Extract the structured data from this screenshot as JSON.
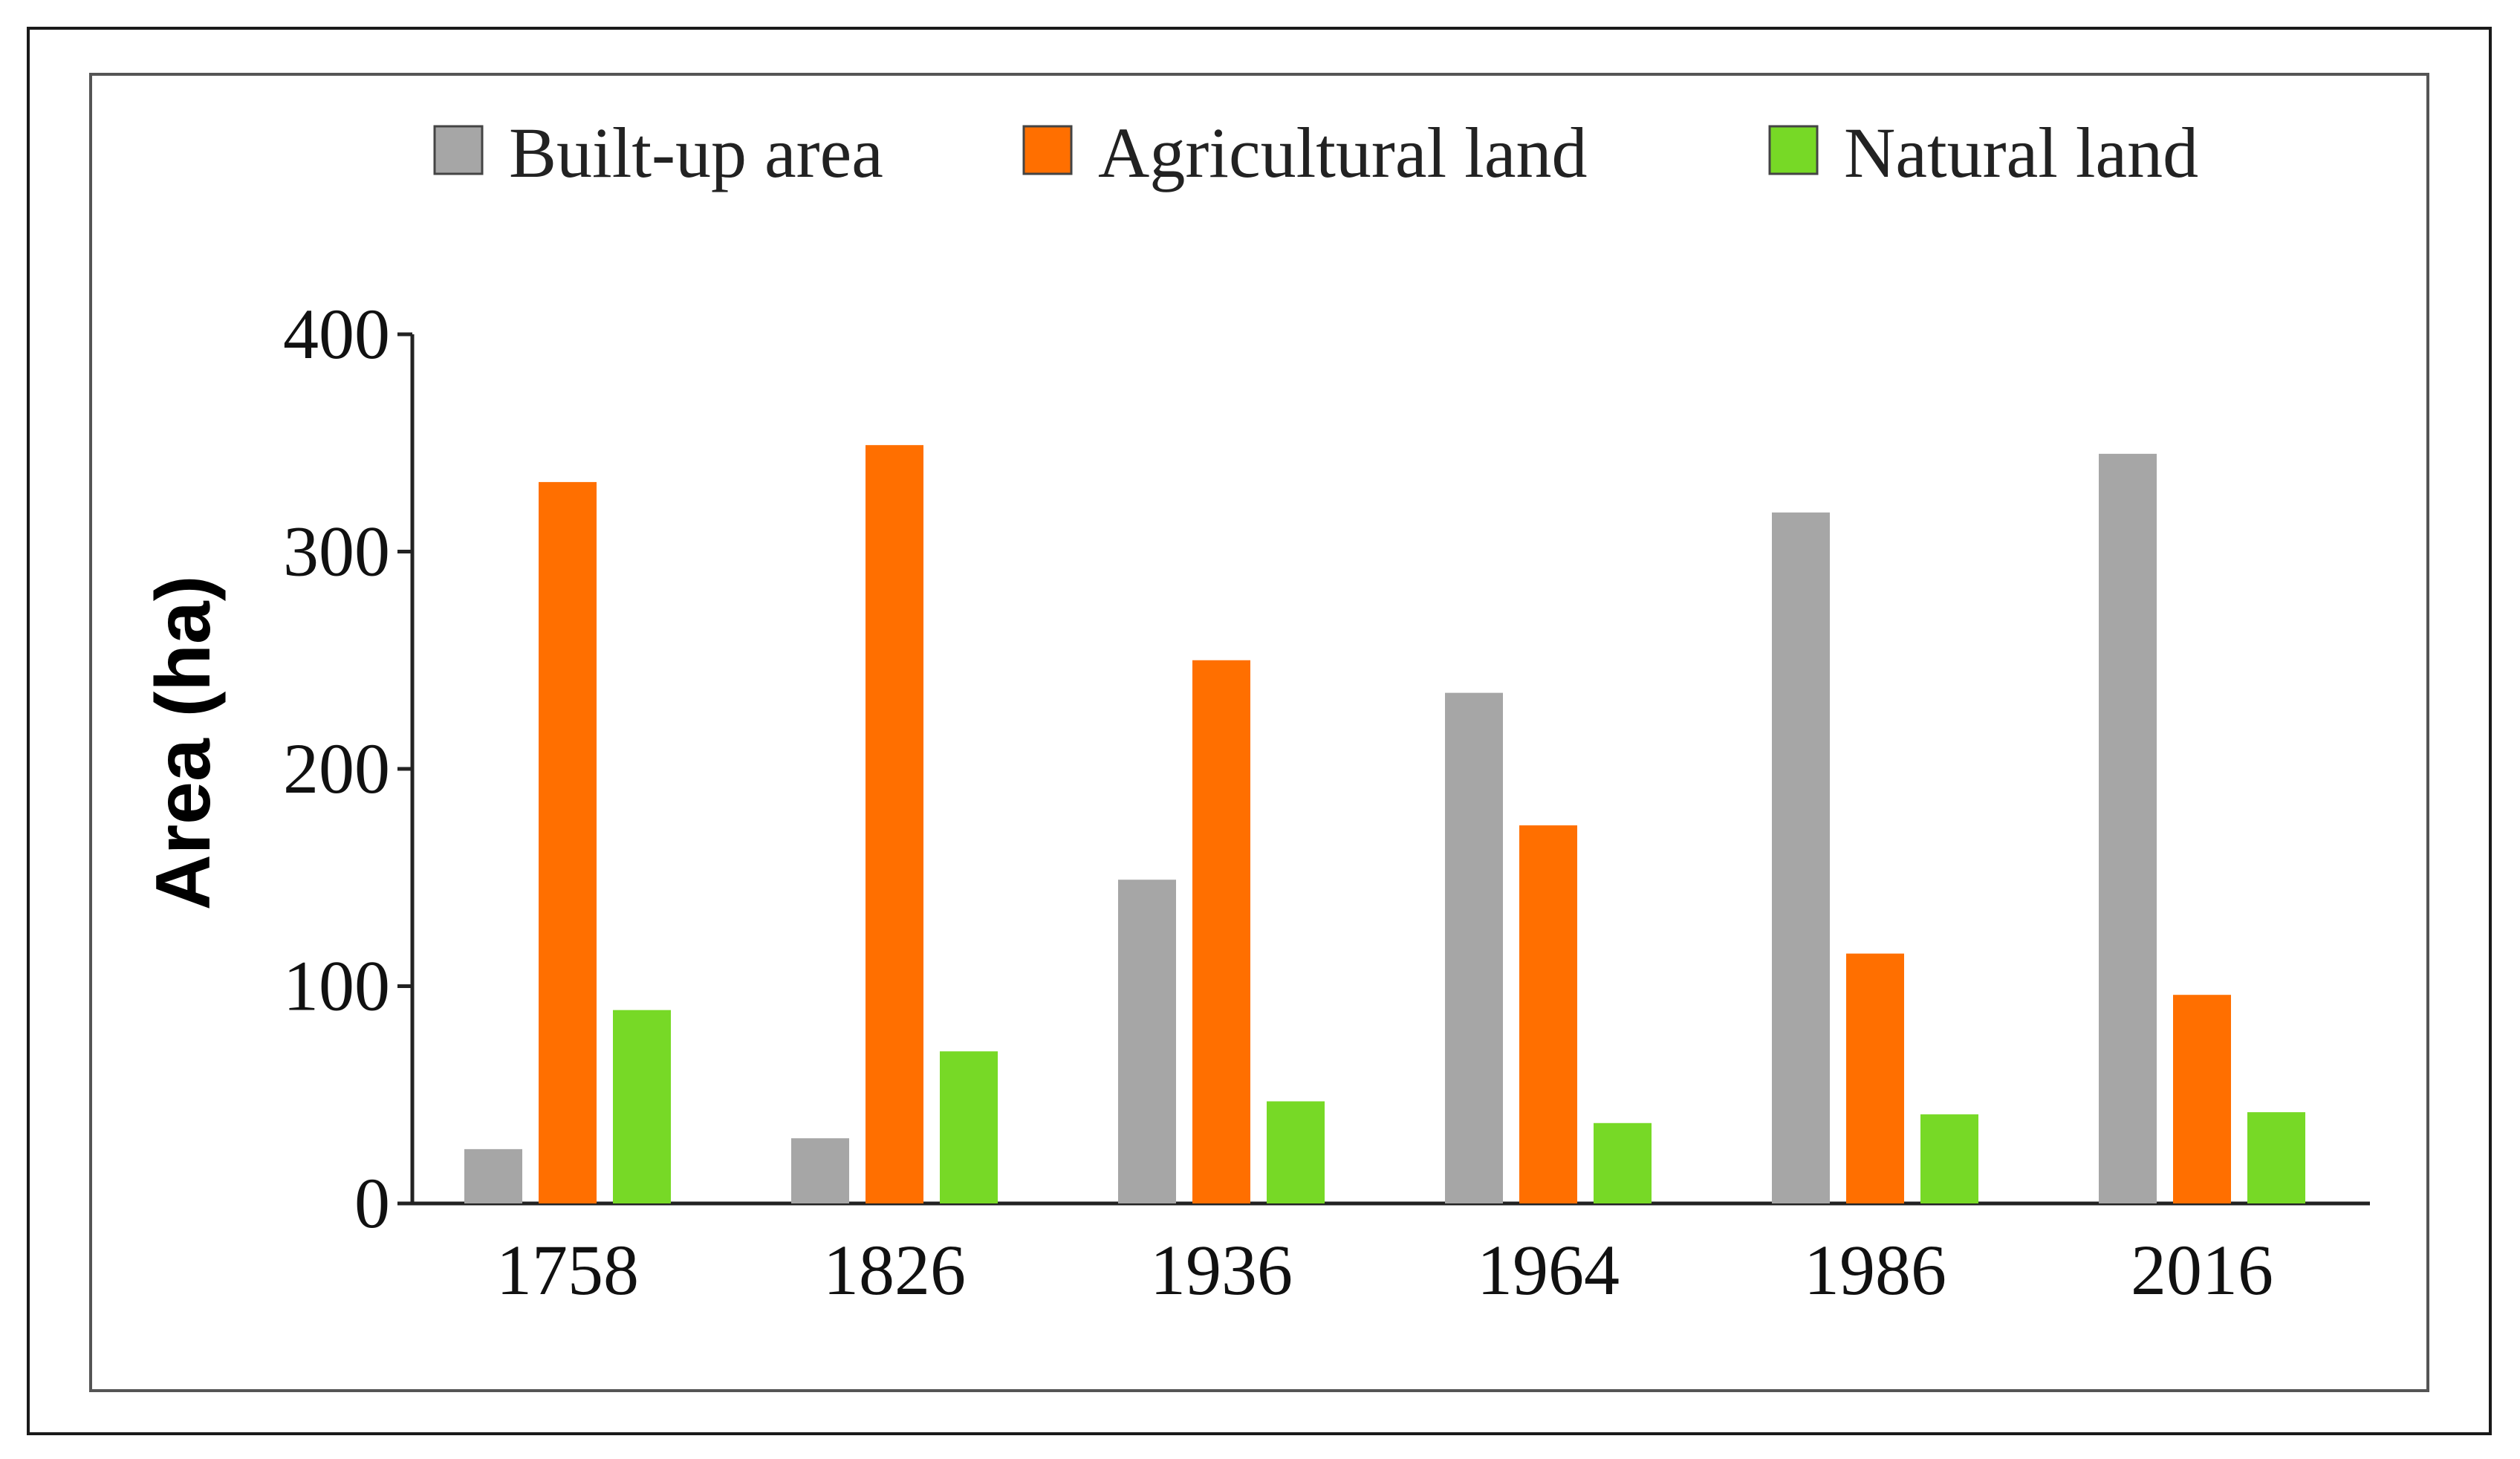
{
  "chart_data": {
    "type": "bar",
    "title": "",
    "xlabel": "",
    "ylabel": "Area (ha)",
    "ylim": [
      0,
      400
    ],
    "yticks": [
      0,
      100,
      200,
      300,
      400
    ],
    "grid": false,
    "legend_position": "top",
    "categories": [
      "1758",
      "1826",
      "1936",
      "1964",
      "1986",
      "2016"
    ],
    "series": [
      {
        "name": "Built-up area",
        "color": "#a6a6a6",
        "values": [
          25,
          30,
          149,
          235,
          318,
          345
        ]
      },
      {
        "name": "Agricultural land",
        "color": "#ff6f00",
        "values": [
          332,
          349,
          250,
          174,
          115,
          96
        ]
      },
      {
        "name": "Natural land",
        "color": "#77d926",
        "values": [
          89,
          70,
          47,
          37,
          41,
          42
        ]
      }
    ]
  }
}
